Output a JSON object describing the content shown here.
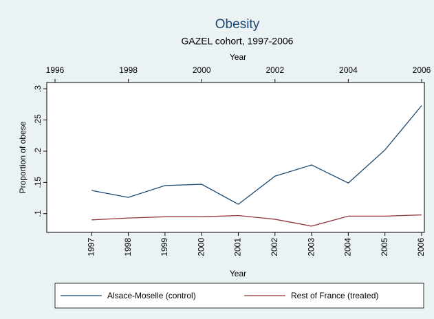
{
  "chart_data": {
    "type": "line",
    "title": "Obesity",
    "subtitle": "GAZEL cohort, 1997-2006",
    "xlabel": "Year",
    "x2label": "Year",
    "ylabel": "Proportion of obese",
    "x": [
      1997,
      1998,
      1999,
      2000,
      2001,
      2002,
      2003,
      2004,
      2005,
      2006
    ],
    "series": [
      {
        "name": "Alsace-Moselle (control)",
        "color": "#1a476f",
        "values": [
          0.137,
          0.126,
          0.145,
          0.147,
          0.115,
          0.16,
          0.178,
          0.149,
          0.202,
          0.273
        ]
      },
      {
        "name": "Rest of France (treated)",
        "color": "#90353b",
        "values": [
          0.09,
          0.093,
          0.095,
          0.095,
          0.097,
          0.091,
          0.08,
          0.096,
          0.096,
          0.098
        ]
      }
    ],
    "xlim": [
      1996,
      2006
    ],
    "xticks": [
      1996,
      1998,
      2000,
      2002,
      2004,
      2006
    ],
    "x2ticks": [
      1997,
      1998,
      1999,
      2000,
      2001,
      2002,
      2003,
      2004,
      2005,
      2006
    ],
    "ylim": [
      0.07,
      0.31
    ],
    "yticks": [
      {
        "value": 0.1,
        "label": ".1"
      },
      {
        "value": 0.15,
        "label": ".15"
      },
      {
        "value": 0.2,
        "label": ".2"
      },
      {
        "value": 0.25,
        "label": ".25"
      },
      {
        "value": 0.3,
        "label": ".3"
      }
    ],
    "legend": "bottom"
  }
}
